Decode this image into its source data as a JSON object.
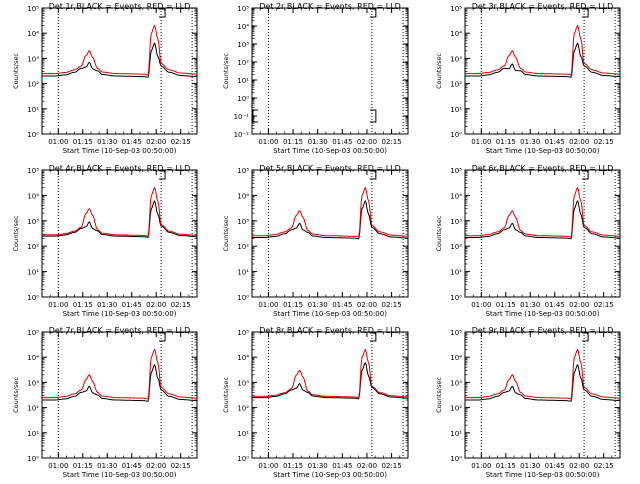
{
  "colors": {
    "events": "#000000",
    "lld": "#e00000",
    "axis": "#000000",
    "background": "#ffffff"
  },
  "chart_data": {
    "type": "line",
    "layout": "3x3 grid",
    "xlabel": "Start Time (10-Sep-03 00:50:00)",
    "ylabel": "Counts/sec",
    "yscale": "log",
    "ylim": [
      1,
      100000
    ],
    "xlim_minutes_after_0050": [
      0,
      95
    ],
    "x_ticks": [
      {
        "t": 10,
        "label": "01:00"
      },
      {
        "t": 25,
        "label": "01:15"
      },
      {
        "t": 40,
        "label": "01:30"
      },
      {
        "t": 55,
        "label": "01:45"
      },
      {
        "t": 70,
        "label": "02:00"
      },
      {
        "t": 85,
        "label": "02:15"
      }
    ],
    "y_ticks": [
      {
        "v": 1,
        "label": "10⁰"
      },
      {
        "v": 10,
        "label": "10¹"
      },
      {
        "v": 100,
        "label": "10²"
      },
      {
        "v": 1000,
        "label": "10³"
      },
      {
        "v": 10000,
        "label": "10⁴"
      },
      {
        "v": 100000,
        "label": "10⁵"
      }
    ],
    "y_ticks_det2": [
      {
        "v": 0.01,
        "label": "10⁻²"
      },
      {
        "v": 0.1,
        "label": "10⁻¹"
      },
      {
        "v": 1,
        "label": "10⁰"
      },
      {
        "v": 10,
        "label": "10¹"
      },
      {
        "v": 100,
        "label": "10²"
      },
      {
        "v": 1000,
        "label": "10³"
      },
      {
        "v": 10000,
        "label": "10⁴"
      },
      {
        "v": 100000,
        "label": "10⁵"
      }
    ],
    "ylim_det2": [
      0.01,
      100000
    ],
    "dotted_vlines_minutes": [
      10,
      73,
      92
    ],
    "series_names": [
      "Events (BLACK)",
      "LLD (RED)"
    ],
    "panels": [
      {
        "title": "Det 1r BLACK = Events, RED = LLD",
        "events_base": 200,
        "events_peak1": 700,
        "events_peak2": 4000,
        "lld_base": 250,
        "lld_peak1": 2000,
        "lld_peak2": 20000,
        "empty": false
      },
      {
        "title": "Det 2r BLACK = Events, RED = LLD",
        "empty": true
      },
      {
        "title": "Det 3r BLACK = Events, RED = LLD",
        "events_base": 200,
        "events_peak1": 600,
        "events_peak2": 4000,
        "lld_base": 250,
        "lld_peak1": 2000,
        "lld_peak2": 20000,
        "empty": false
      },
      {
        "title": "Det 4r BLACK = Events, RED = LLD",
        "events_base": 250,
        "events_peak1": 900,
        "events_peak2": 6000,
        "lld_base": 280,
        "lld_peak1": 3000,
        "lld_peak2": 20000,
        "empty": false
      },
      {
        "title": "Det 5r BLACK = Events, RED = LLD",
        "events_base": 220,
        "events_peak1": 800,
        "events_peak2": 6000,
        "lld_base": 260,
        "lld_peak1": 2500,
        "lld_peak2": 20000,
        "empty": false
      },
      {
        "title": "Det 6r BLACK = Events, RED = LLD",
        "events_base": 220,
        "events_peak1": 800,
        "events_peak2": 6000,
        "lld_base": 260,
        "lld_peak1": 2500,
        "lld_peak2": 20000,
        "empty": false
      },
      {
        "title": "Det 7r BLACK = Events, RED = LLD",
        "events_base": 200,
        "events_peak1": 700,
        "events_peak2": 5000,
        "lld_base": 250,
        "lld_peak1": 2000,
        "lld_peak2": 20000,
        "empty": false
      },
      {
        "title": "Det 8r BLACK = Events, RED = LLD",
        "events_base": 250,
        "events_peak1": 900,
        "events_peak2": 6000,
        "lld_base": 280,
        "lld_peak1": 3000,
        "lld_peak2": 20000,
        "empty": false
      },
      {
        "title": "Det 9r BLACK = Events, RED = LLD",
        "events_base": 200,
        "events_peak1": 700,
        "events_peak2": 5000,
        "lld_base": 250,
        "lld_peak1": 2000,
        "lld_peak2": 20000,
        "empty": false
      }
    ]
  }
}
